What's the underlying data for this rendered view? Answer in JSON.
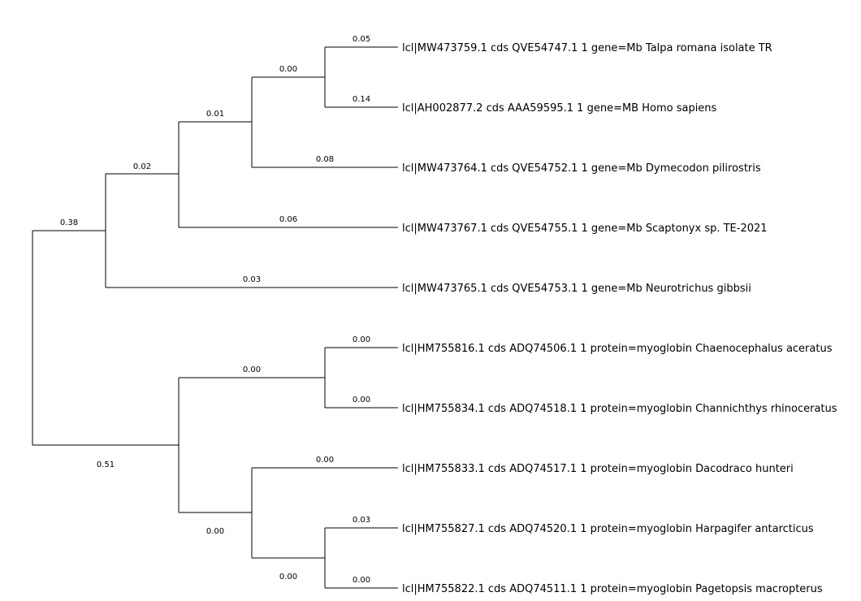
{
  "tree": {
    "taxa": [
      {
        "id": "t1",
        "label": "lcl|MW473759.1 cds QVE54747.1 1 gene=Mb Talpa romana isolate TR",
        "branch_length": "0.05"
      },
      {
        "id": "t2",
        "label": "lcl|AH002877.2 cds AAA59595.1 1 gene=MB Homo sapiens",
        "branch_length": "0.14"
      },
      {
        "id": "t3",
        "label": "lcl|MW473764.1 cds QVE54752.1 1 gene=Mb Dymecodon pilirostris",
        "branch_length": "0.08"
      },
      {
        "id": "t4",
        "label": "lcl|MW473767.1 cds QVE54755.1 1 gene=Mb Scaptonyx sp. TE-2021",
        "branch_length": "0.06"
      },
      {
        "id": "t5",
        "label": "lcl|MW473765.1 cds QVE54753.1 1 gene=Mb Neurotrichus gibbsii",
        "branch_length": "0.03"
      },
      {
        "id": "t6",
        "label": "lcl|HM755816.1 cds ADQ74506.1 1 protein=myoglobin Chaenocephalus aceratus",
        "branch_length": "0.00"
      },
      {
        "id": "t7",
        "label": "lcl|HM755834.1 cds ADQ74518.1 1 protein=myoglobin Channichthys rhinoceratus",
        "branch_length": "0.00"
      },
      {
        "id": "t8",
        "label": "lcl|HM755833.1 cds ADQ74517.1 1 protein=myoglobin Dacodraco hunteri",
        "branch_length": "0.00"
      },
      {
        "id": "t9",
        "label": "lcl|HM755827.1 cds ADQ74520.1 1 protein=myoglobin Harpagifer antarcticus",
        "branch_length": "0.03"
      },
      {
        "id": "t10",
        "label": "lcl|HM755822.1 cds ADQ74511.1 1 protein=myoglobin Pagetopsis macropterus",
        "branch_length": "0.00"
      }
    ],
    "internal_branches": [
      {
        "id": "n_talpa_homo",
        "branch_length": "0.00"
      },
      {
        "id": "n_dymecodon",
        "branch_length": "0.01"
      },
      {
        "id": "n_scaptonyx",
        "branch_length": "0.02"
      },
      {
        "id": "n_mammal",
        "branch_length": "0.38"
      },
      {
        "id": "n_chaeno",
        "branch_length": "0.00"
      },
      {
        "id": "n_fish",
        "branch_length": "0.51"
      },
      {
        "id": "n_harp_page",
        "branch_length": "0.00"
      },
      {
        "id": "n_daco",
        "branch_length": "0.00"
      }
    ]
  }
}
